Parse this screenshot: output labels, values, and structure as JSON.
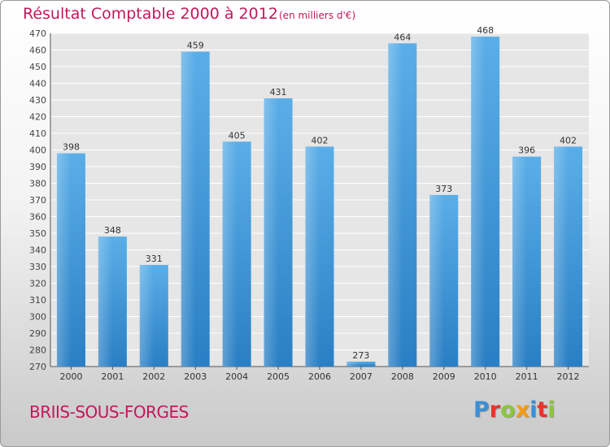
{
  "header": {
    "title": "Résultat Comptable 2000 à 2012",
    "subtitle": "(en milliers d'€)"
  },
  "footer": {
    "place": "BRIIS-SOUS-FORGES",
    "logo_letters": [
      {
        "ch": "P",
        "color": "#3a8fd6"
      },
      {
        "ch": "r",
        "color": "#e8332a"
      },
      {
        "ch": "o",
        "color": "#8cc63e"
      },
      {
        "ch": "x",
        "color": "#f39c12"
      },
      {
        "ch": "i",
        "color": "#3a8fd6"
      },
      {
        "ch": "t",
        "color": "#e8332a"
      },
      {
        "ch": "i",
        "color": "#8cc63e"
      }
    ]
  },
  "colors": {
    "bar_light": "#5aaee8",
    "bar_dark": "#2a7fc4",
    "title": "#c2185b",
    "grid": "#ffffff",
    "plot_bg": "#e6e6e6"
  },
  "chart_data": {
    "type": "bar",
    "title": "Résultat Comptable 2000 à 2012",
    "subtitle": "(en milliers d'€)",
    "categories": [
      "2000",
      "2001",
      "2002",
      "2003",
      "2004",
      "2005",
      "2006",
      "2007",
      "2008",
      "2009",
      "2010",
      "2011",
      "2012"
    ],
    "values": [
      398,
      348,
      331,
      459,
      405,
      431,
      402,
      273,
      464,
      373,
      468,
      396,
      402
    ],
    "ylim": [
      270,
      470
    ],
    "yticks": [
      270,
      280,
      290,
      300,
      310,
      320,
      330,
      340,
      350,
      360,
      370,
      380,
      390,
      400,
      410,
      420,
      430,
      440,
      450,
      460,
      470
    ],
    "grid": true,
    "data_labels": true
  }
}
